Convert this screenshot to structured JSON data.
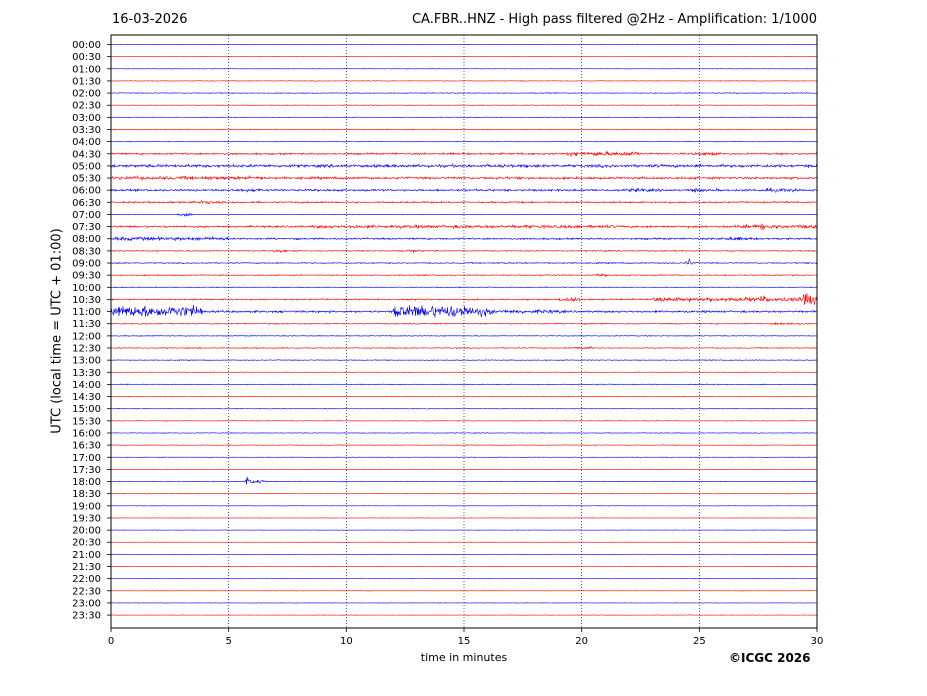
{
  "header": {
    "date": "16-03-2026",
    "title": "CA.FBR..HNZ - High pass filtered @2Hz - Amplification: 1/1000"
  },
  "footer": {
    "copyright": "©ICGC 2026"
  },
  "colors": {
    "trace_odd": "#ff0000",
    "trace_even": "#0000ff",
    "grid": "#0000aa"
  },
  "chart_data": {
    "type": "line",
    "title": "CA.FBR..HNZ - High pass filtered @2Hz - Amplification: 1/1000",
    "xlabel": "time in minutes",
    "ylabel": "UTC (local time = UTC + 01:00)",
    "xlim": [
      0,
      30
    ],
    "x_ticks": [
      0,
      5,
      10,
      15,
      20,
      25,
      30
    ],
    "grid": "vertical dotted at 5-minute marks",
    "row_labels": [
      "00:00",
      "00:30",
      "01:00",
      "01:30",
      "02:00",
      "02:30",
      "03:00",
      "03:30",
      "04:00",
      "04:30",
      "05:00",
      "05:30",
      "06:00",
      "06:30",
      "07:00",
      "07:30",
      "08:00",
      "08:30",
      "09:00",
      "09:30",
      "10:00",
      "10:30",
      "11:00",
      "11:30",
      "12:00",
      "12:30",
      "13:00",
      "13:30",
      "14:00",
      "14:30",
      "15:00",
      "15:30",
      "16:00",
      "16:30",
      "17:00",
      "17:30",
      "18:00",
      "18:30",
      "19:00",
      "19:30",
      "20:00",
      "20:30",
      "21:00",
      "21:30",
      "22:00",
      "22:30",
      "23:00",
      "23:30"
    ],
    "row_colors_pattern": [
      "blue",
      "red"
    ],
    "row_noise_levels": [
      0.3,
      0.3,
      0.3,
      0.5,
      0.6,
      0.5,
      0.5,
      0.6,
      0.5,
      1.3,
      1.6,
      1.6,
      1.4,
      1.2,
      0.4,
      1.4,
      1.2,
      0.8,
      0.8,
      0.8,
      0.6,
      1.0,
      1.4,
      0.8,
      0.6,
      0.7,
      0.6,
      0.5,
      0.6,
      0.5,
      0.5,
      0.5,
      0.5,
      0.5,
      0.4,
      0.4,
      0.5,
      0.4,
      0.3,
      0.3,
      0.3,
      0.3,
      0.3,
      0.3,
      0.3,
      0.3,
      0.3,
      0.3
    ],
    "events": [
      {
        "row": "04:30",
        "start": 19.3,
        "end": 22.5,
        "amp": 3
      },
      {
        "row": "04:30",
        "start": 24.5,
        "end": 26.2,
        "amp": 2.5
      },
      {
        "row": "05:00",
        "start": 0,
        "end": 30,
        "amp": 2
      },
      {
        "row": "05:30",
        "start": 0,
        "end": 6.5,
        "amp": 2.5
      },
      {
        "row": "06:00",
        "start": 5.2,
        "end": 6.6,
        "amp": 2.5
      },
      {
        "row": "06:00",
        "start": 21.5,
        "end": 23.5,
        "amp": 2.5
      },
      {
        "row": "06:00",
        "start": 24.5,
        "end": 25.2,
        "amp": 3
      },
      {
        "row": "06:00",
        "start": 27.3,
        "end": 29.5,
        "amp": 2.5
      },
      {
        "row": "06:30",
        "start": 3.0,
        "end": 5.0,
        "amp": 2
      },
      {
        "row": "07:00",
        "start": 2.8,
        "end": 3.6,
        "amp": 2
      },
      {
        "row": "07:30",
        "start": 8.5,
        "end": 21.5,
        "amp": 2.2
      },
      {
        "row": "07:30",
        "start": 26.5,
        "end": 30,
        "amp": 2.5
      },
      {
        "row": "07:30",
        "start": 27.5,
        "end": 27.8,
        "amp": 6
      },
      {
        "row": "08:00",
        "start": 0,
        "end": 5.0,
        "amp": 2.5
      },
      {
        "row": "08:00",
        "start": 25.5,
        "end": 27.5,
        "amp": 2.5
      },
      {
        "row": "08:30",
        "start": 6.8,
        "end": 7.6,
        "amp": 2
      },
      {
        "row": "08:30",
        "start": 12.3,
        "end": 13.3,
        "amp": 2
      },
      {
        "row": "09:00",
        "start": 24.4,
        "end": 24.7,
        "amp": 6
      },
      {
        "row": "09:30",
        "start": 20.5,
        "end": 21.2,
        "amp": 2
      },
      {
        "row": "10:30",
        "start": 19.0,
        "end": 20.0,
        "amp": 4
      },
      {
        "row": "10:30",
        "start": 23.0,
        "end": 30,
        "amp": 3
      },
      {
        "row": "10:30",
        "start": 29.3,
        "end": 30,
        "amp": 9
      },
      {
        "row": "10:30",
        "start": 27.5,
        "end": 28.0,
        "amp": 5
      },
      {
        "row": "11:00",
        "start": 0,
        "end": 3.9,
        "amp": 8
      },
      {
        "row": "11:00",
        "start": 12.0,
        "end": 15.3,
        "amp": 9
      },
      {
        "row": "11:00",
        "start": 15.3,
        "end": 16.2,
        "amp": 7
      },
      {
        "row": "11:00",
        "start": 16.2,
        "end": 19.3,
        "amp": 2.5
      },
      {
        "row": "11:30",
        "start": 28.0,
        "end": 29.5,
        "amp": 2
      },
      {
        "row": "12:30",
        "start": 19.5,
        "end": 20.5,
        "amp": 2.5
      },
      {
        "row": "18:00",
        "start": 5.6,
        "end": 6.7,
        "amp": 3
      },
      {
        "row": "18:00",
        "start": 5.7,
        "end": 5.9,
        "amp": 7
      }
    ]
  }
}
